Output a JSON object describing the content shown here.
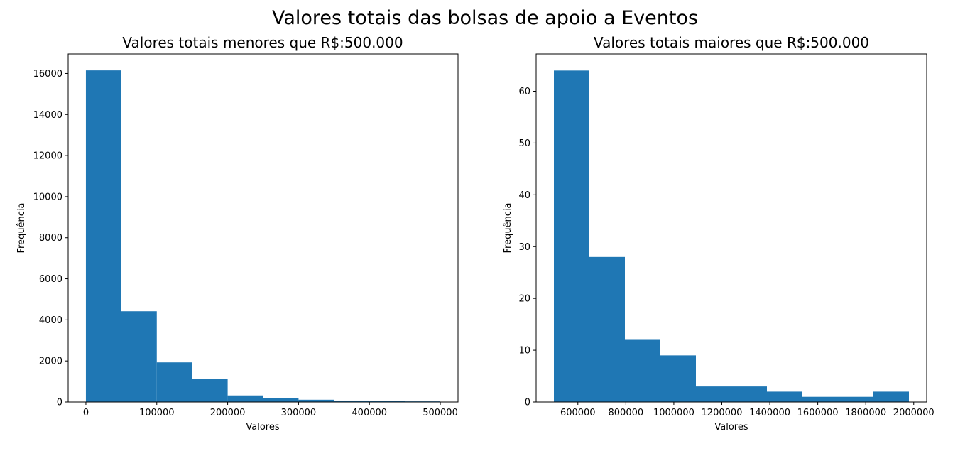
{
  "figure": {
    "suptitle": "Valores totais das bolsas de apoio a Eventos"
  },
  "colors": {
    "bar": "#1f77b4",
    "axis": "#000000",
    "background": "#ffffff"
  },
  "chart_data": [
    {
      "type": "bar",
      "title": "Valores totais menores que R$:500.000",
      "xlabel": "Valores",
      "ylabel": "Frequência",
      "bin_edges": [
        0,
        50000,
        100000,
        150000,
        200000,
        250000,
        300000,
        350000,
        400000,
        450000,
        500000
      ],
      "values": [
        16150,
        4420,
        1930,
        1140,
        320,
        200,
        110,
        70,
        40,
        30
      ],
      "xlim": [
        -25000,
        525000
      ],
      "ylim": [
        0,
        16950
      ],
      "xticks": [
        0,
        100000,
        200000,
        300000,
        400000,
        500000
      ],
      "xtick_labels": [
        "0",
        "100000",
        "200000",
        "300000",
        "400000",
        "500000"
      ],
      "yticks": [
        0,
        2000,
        4000,
        6000,
        8000,
        10000,
        12000,
        14000,
        16000
      ],
      "ytick_labels": [
        "0",
        "2000",
        "4000",
        "6000",
        "8000",
        "10000",
        "12000",
        "14000",
        "16000"
      ],
      "grid": false
    },
    {
      "type": "bar",
      "title": "Valores totais maiores que R$:500.000",
      "xlabel": "Valores",
      "ylabel": "Frequência",
      "bin_edges": [
        500000,
        648000,
        796000,
        944000,
        1092000,
        1240000,
        1388000,
        1536000,
        1684000,
        1832000,
        1980000
      ],
      "values": [
        64,
        28,
        12,
        9,
        3,
        3,
        2,
        1,
        1,
        2
      ],
      "xlim": [
        426000,
        2054000
      ],
      "ylim": [
        0,
        67.2
      ],
      "xticks": [
        600000,
        800000,
        1000000,
        1200000,
        1400000,
        1600000,
        1800000,
        2000000
      ],
      "xtick_labels": [
        "600000",
        "800000",
        "1000000",
        "1200000",
        "1400000",
        "1600000",
        "1800000",
        "2000000"
      ],
      "yticks": [
        0,
        10,
        20,
        30,
        40,
        50,
        60
      ],
      "ytick_labels": [
        "0",
        "10",
        "20",
        "30",
        "40",
        "50",
        "60"
      ],
      "grid": false
    }
  ]
}
